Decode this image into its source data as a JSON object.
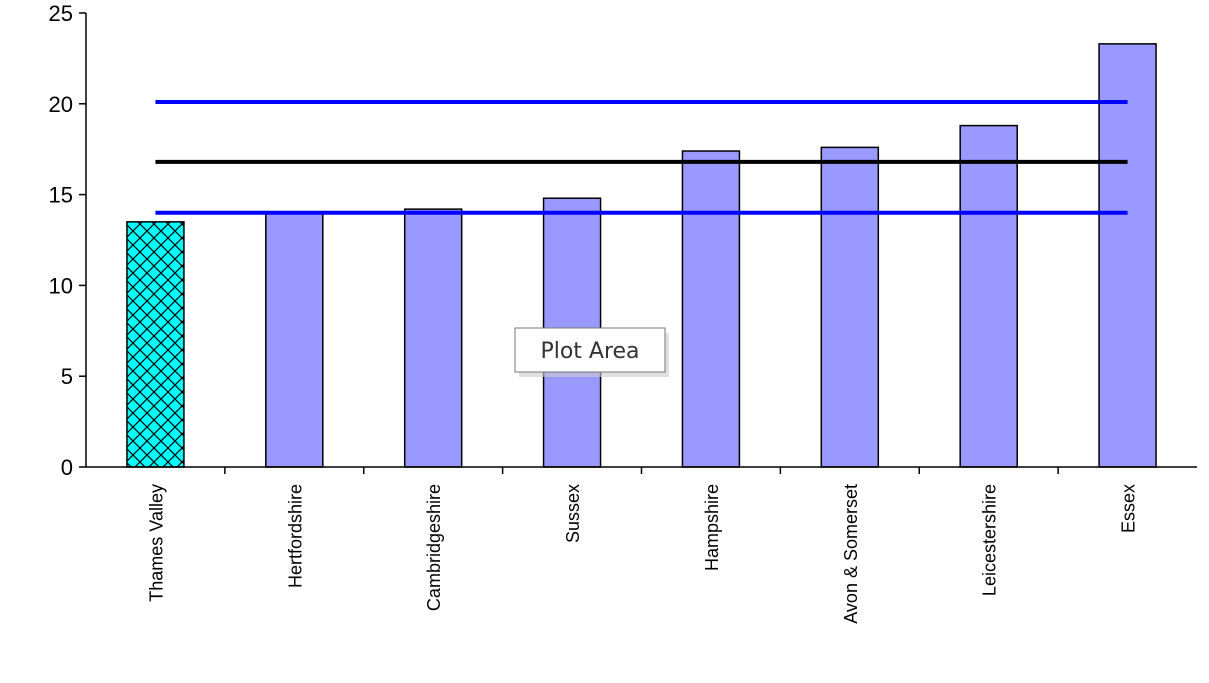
{
  "chart_data": {
    "type": "bar",
    "categories": [
      "Thames Valley",
      "Hertfordshire",
      "Cambridgeshire",
      "Sussex",
      "Hampshire",
      "Avon & Somerset",
      "Leicestershire",
      "Essex"
    ],
    "values": [
      13.5,
      14.0,
      14.2,
      14.8,
      17.4,
      17.6,
      18.8,
      23.3
    ],
    "ylim": [
      0,
      25
    ],
    "yticks": [
      0,
      5,
      10,
      15,
      20,
      25
    ],
    "highlight_index": 0,
    "reference_lines": [
      {
        "value": 20.1,
        "color": "#0000ff"
      },
      {
        "value": 16.8,
        "color": "#000000"
      },
      {
        "value": 14.0,
        "color": "#0000ff"
      }
    ],
    "bar_color": "#9999ff",
    "highlight_color": "#00ffff",
    "grid": false,
    "legend": "none"
  },
  "tooltip": {
    "text": "Plot Area"
  }
}
